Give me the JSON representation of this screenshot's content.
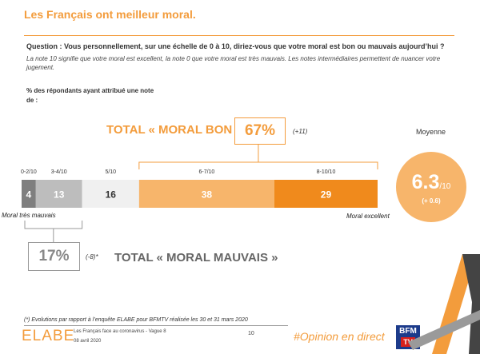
{
  "header": {
    "title": "Les Français ont meilleur moral.",
    "question": "Question : Vous personnellement, sur une échelle de 0 à 10, diriez-vous que votre moral est bon ou mauvais aujourd’hui ?",
    "note": "La note 10 signifie que votre moral est excellent, la note 0 que votre moral est très mauvais. Les notes intermédiaires permettent de nuancer votre jugement.",
    "respondents": "% des répondants ayant attribué une note de :"
  },
  "summary": {
    "bon_label": "TOTAL « MORAL BON »",
    "bon_value": "67%",
    "bon_var": "(+11)",
    "mauvais_label": "TOTAL « MORAL MAUVAIS »",
    "mauvais_value": "17%",
    "mauvais_var": "(-8)*",
    "moyenne_label": "Moyenne",
    "moyenne_value": "6.3",
    "moyenne_denom": "/10",
    "moyenne_var": "(+ 0.6)",
    "left_end_label": "Moral très mauvais",
    "right_end_label": "Moral excellent"
  },
  "chart_data": {
    "type": "bar",
    "orientation": "horizontal-stacked",
    "unit": "%",
    "categories": [
      "0-2/10",
      "3-4/10",
      "5/10",
      "6-7/10",
      "8-10/10"
    ],
    "values": [
      4,
      13,
      16,
      38,
      29
    ],
    "colors": [
      "#7f7f7f",
      "#bdbdbd",
      "#f0f0f0",
      "#f7b56b",
      "#f08a1c"
    ],
    "label_colors": [
      "#ffffff",
      "#ffffff",
      "#333333",
      "#ffffff",
      "#ffffff"
    ]
  },
  "footer": {
    "footnote": "(*) Evolutions par rapport à l’enquête ELABE pour BFMTV réalisée les 30 et 31 mars 2020",
    "brand": "ELABE",
    "survey": "Les Français face au coronavirus - Vague 8",
    "date": "08 avril 2020",
    "page": "10",
    "hashtag": "#Opinion en direct",
    "bfm_top": "BFM",
    "bfm_bottom": "TV"
  }
}
